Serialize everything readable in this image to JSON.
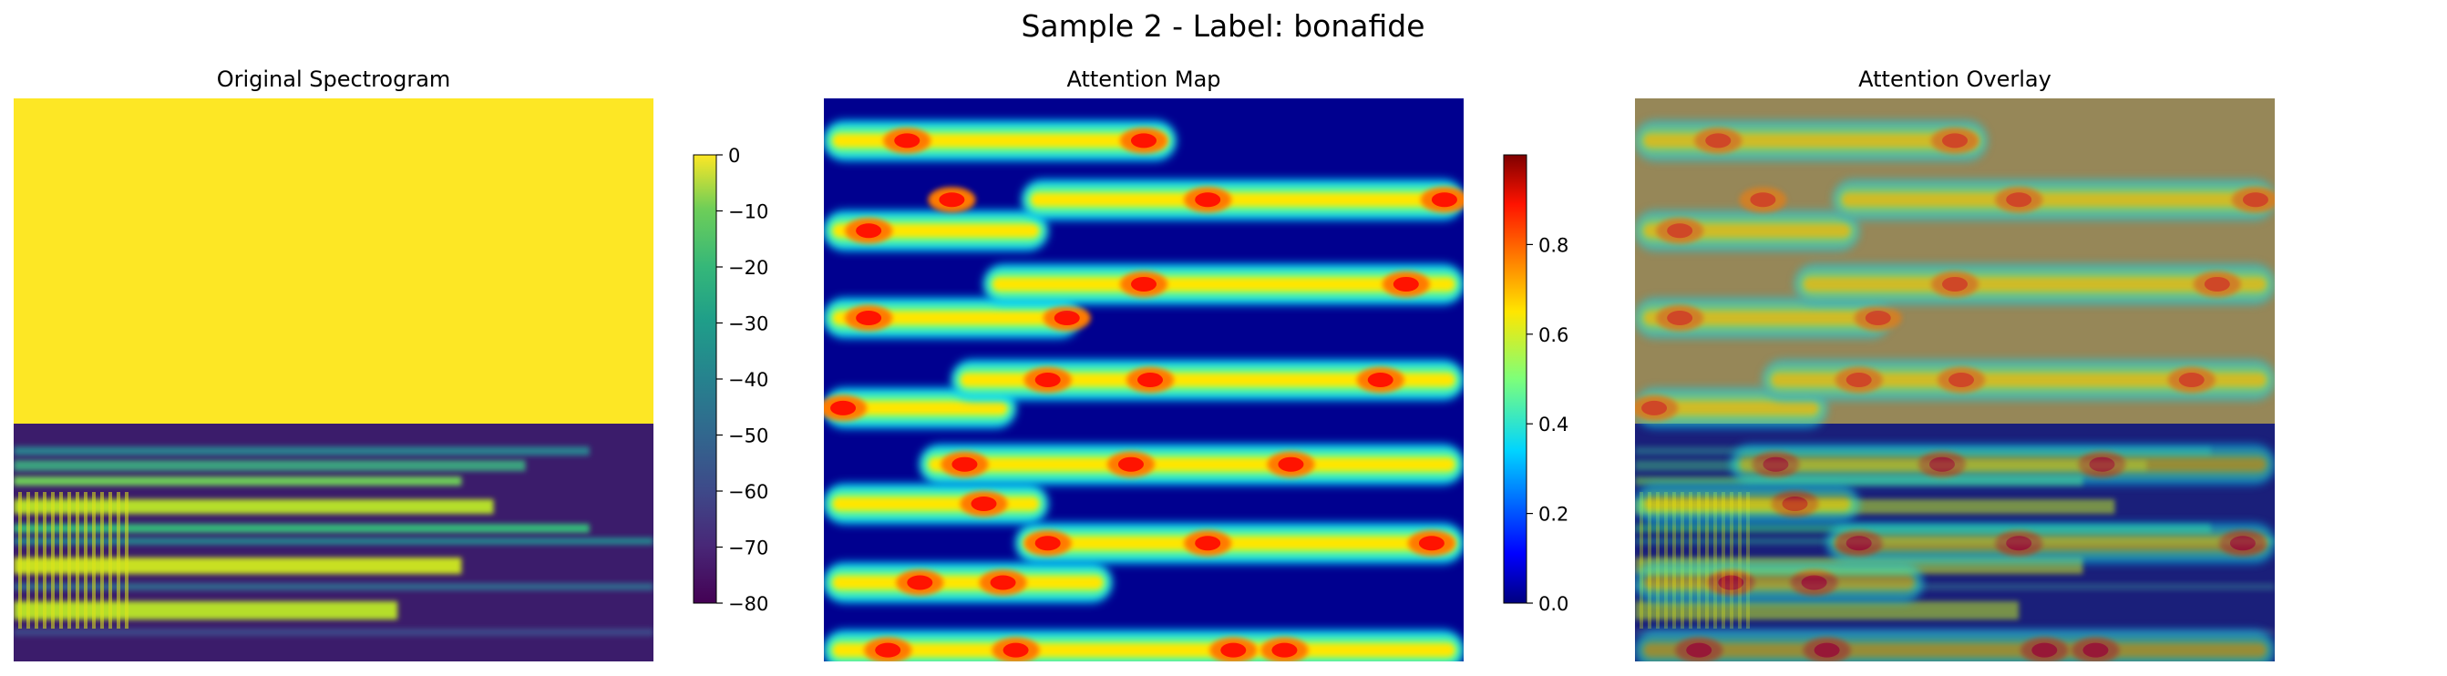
{
  "figure": {
    "suptitle": "Sample 2 - Label: bonafide"
  },
  "chart_data": [
    {
      "type": "heatmap",
      "title": "Original Spectrogram",
      "colormap": "viridis",
      "axes_visible": false,
      "description_of_content": [
        "upper band uniform at 0",
        "lower band speech harmonics"
      ],
      "upper_region_value": 0,
      "colorbar": {
        "range": [
          -80,
          0
        ],
        "ticks": [
          0,
          -10,
          -20,
          -30,
          -40,
          -50,
          -60,
          -70,
          -80
        ],
        "tick_labels": [
          "0",
          "−10",
          "−20",
          "−30",
          "−40",
          "−50",
          "−60",
          "−70",
          "−80"
        ]
      }
    },
    {
      "type": "heatmap",
      "title": "Attention Map",
      "colormap": "jet",
      "axes_visible": false,
      "colorbar": {
        "range": [
          0,
          1
        ],
        "ticks": [
          0.0,
          0.2,
          0.4,
          0.6,
          0.8
        ],
        "tick_labels": [
          "0.0",
          "0.2",
          "0.4",
          "0.6",
          "0.8"
        ]
      }
    },
    {
      "type": "heatmap",
      "title": "Attention Overlay",
      "colormap": "jet",
      "overlay_on": "Original Spectrogram",
      "axes_visible": false
    }
  ],
  "colors": {
    "viridis_yellow": "#fde725",
    "viridis_purple": "#440154",
    "jet_dark_blue": "#00008f",
    "overlay_upper": "#968758"
  }
}
